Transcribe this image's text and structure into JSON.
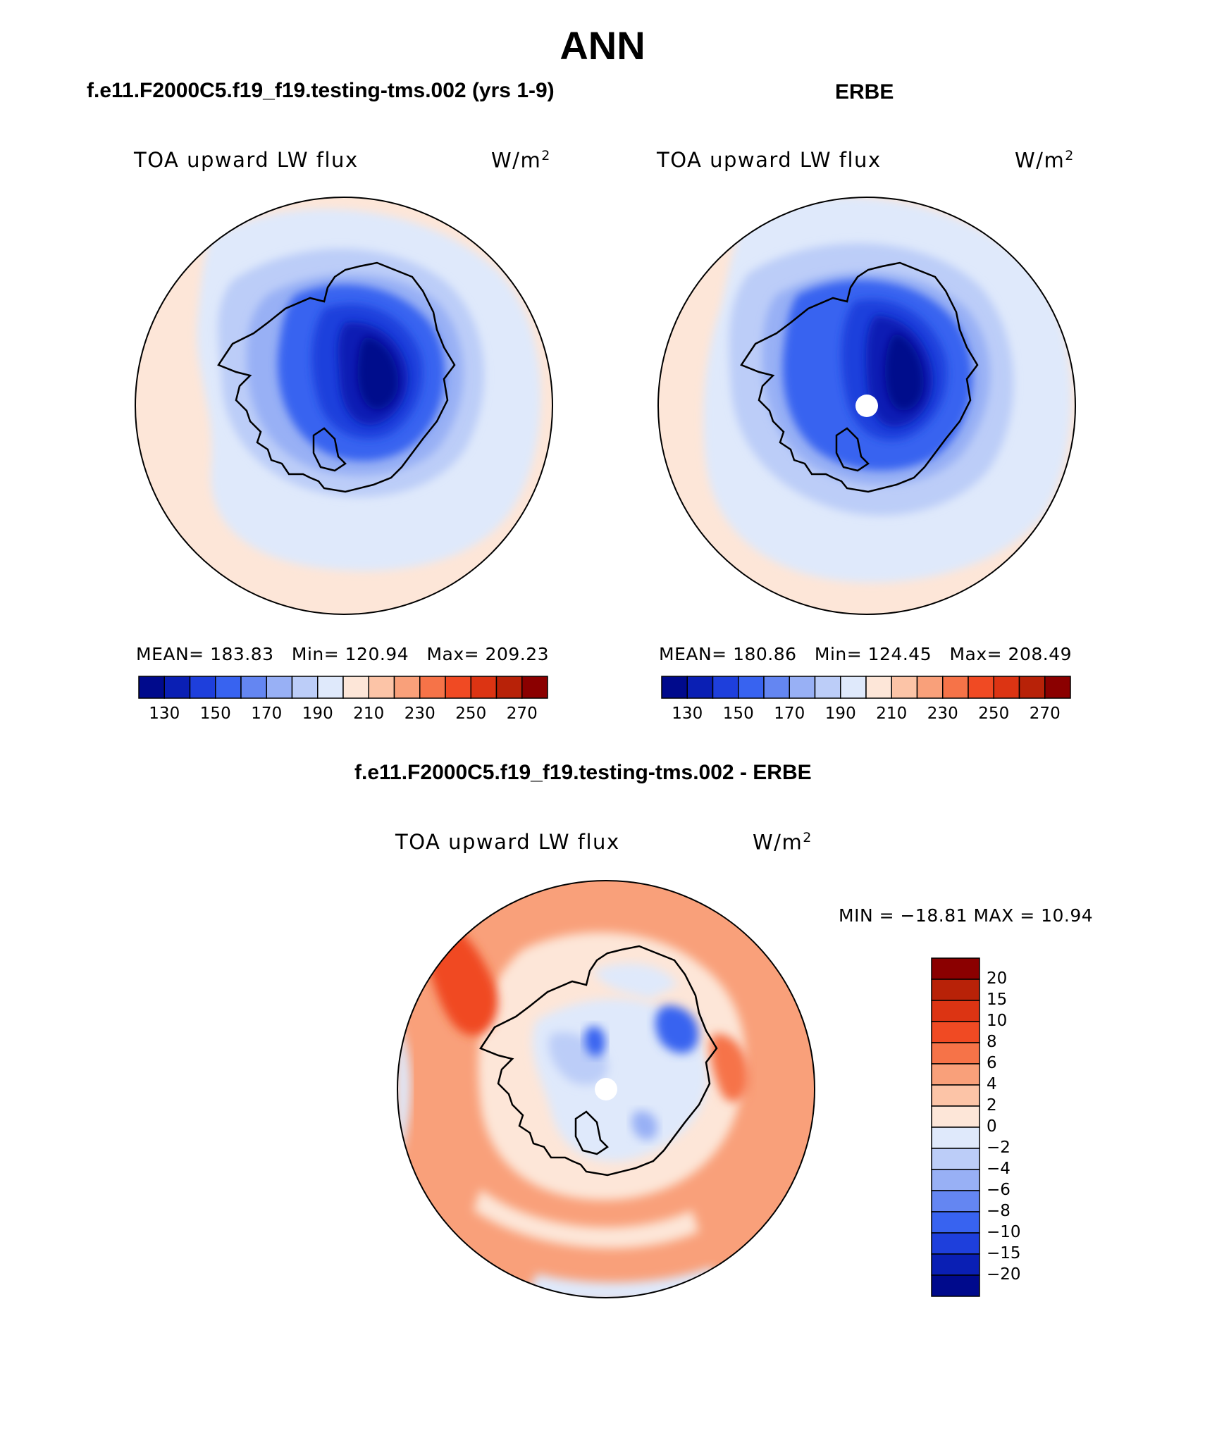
{
  "title": "ANN",
  "panels": [
    {
      "title": "f.e11.F2000C5.f19_f19.testing-tms.002 (yrs 1-9)",
      "variable": "TOA upward LW flux",
      "units_base": "W/m",
      "units_exp": "2",
      "stats": {
        "mean": "MEAN= 183.83",
        "min": "Min= 120.94",
        "max": "Max= 209.23"
      },
      "colorbar_colors": [
        "#000a8c",
        "#0a1fb4",
        "#1e3fdc",
        "#3863f0",
        "#6486f2",
        "#98b0f5",
        "#bccdf8",
        "#dfe9fb",
        "#fde6d8",
        "#fcc4a7",
        "#f9a07a",
        "#f67348",
        "#f04a23",
        "#dc3413",
        "#b82208",
        "#8b0000"
      ],
      "colorbar_ticks": [
        "130",
        "150",
        "170",
        "190",
        "210",
        "230",
        "250",
        "270"
      ]
    },
    {
      "title": "ERBE",
      "variable": "TOA upward LW flux",
      "units_base": "W/m",
      "units_exp": "2",
      "stats": {
        "mean": "MEAN= 180.86",
        "min": "Min= 124.45",
        "max": "Max= 208.49"
      },
      "colorbar_colors": [
        "#000a8c",
        "#0a1fb4",
        "#1e3fdc",
        "#3863f0",
        "#6486f2",
        "#98b0f5",
        "#bccdf8",
        "#dfe9fb",
        "#fde6d8",
        "#fcc4a7",
        "#f9a07a",
        "#f67348",
        "#f04a23",
        "#dc3413",
        "#b82208",
        "#8b0000"
      ],
      "colorbar_ticks": [
        "130",
        "150",
        "170",
        "190",
        "210",
        "230",
        "250",
        "270"
      ]
    }
  ],
  "difference": {
    "title": "f.e11.F2000C5.f19_f19.testing-tms.002 - ERBE",
    "variable": "TOA upward LW flux",
    "units_base": "W/m",
    "units_exp": "2",
    "minmax": "MIN = −18.81 MAX =   10.94",
    "colorbar_colors": [
      "#8b0000",
      "#b82208",
      "#dc3413",
      "#f04a23",
      "#f67348",
      "#f9a07a",
      "#fcc4a7",
      "#fde6d8",
      "#dfe9fb",
      "#bccdf8",
      "#98b0f5",
      "#6486f2",
      "#3863f0",
      "#1e3fdc",
      "#0a1fb4",
      "#000a8c"
    ],
    "colorbar_ticks": [
      "20",
      "15",
      "10",
      "8",
      "6",
      "4",
      "2",
      "0",
      "−2",
      "−4",
      "−6",
      "−8",
      "−10",
      "−15",
      "−20"
    ]
  },
  "colors": {
    "deep_blue": "#000a8c",
    "mid_blue": "#3863f0",
    "light_blue": "#dfe9fb",
    "pale_orange": "#fde6d8",
    "orange": "#f9a07a",
    "red_orange": "#f04a23"
  }
}
